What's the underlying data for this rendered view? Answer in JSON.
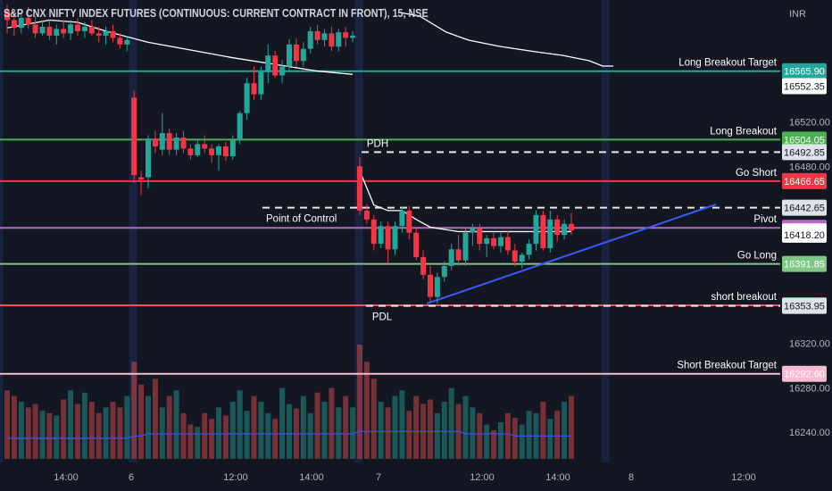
{
  "chart_data": {
    "type": "candlestick",
    "title": "S&P CNX NIFTY INDEX FUTURES (CONTINUOUS: CURRENT CONTRACT IN FRONT), 15, NSE",
    "currency": "INR",
    "ylim": [
      16215,
      16610
    ],
    "y_ticks": [
      "16520.00",
      "16480.00",
      "16320.00",
      "16280.00",
      "16240.00"
    ],
    "x_ticks": [
      "14:00",
      "6",
      "12:00",
      "14:00",
      "7",
      "12:00",
      "14:00",
      "8",
      "12:00"
    ],
    "grid": false,
    "levels": [
      {
        "name": "Long Breakout Target",
        "value": 16565.9,
        "price_label": "16565.90",
        "color": "#26a69a"
      },
      {
        "name": "Long Breakout",
        "value": 16504.05,
        "price_label": "16504.05",
        "color": "#4caf50"
      },
      {
        "name": "Go Short",
        "value": 16466.65,
        "price_label": "16466.65",
        "color": "#f23645"
      },
      {
        "name": "Pivot",
        "value": 16424.4,
        "price_label": "16424.40",
        "color": "#ba68c8"
      },
      {
        "name": "Go Long",
        "value": 16391.85,
        "price_label": "16391.85",
        "color": "#81c784"
      },
      {
        "name": "short breakout",
        "value": 16354.45,
        "price_label": "16354.45",
        "color": "#f7525f"
      },
      {
        "name": "Short  Breakout Target",
        "value": 16292.6,
        "price_label": "16292.60",
        "color": "#f8bbd0"
      }
    ],
    "dashed_levels": [
      {
        "name": "PDH",
        "value": 16492.85,
        "price_label": "16492.85"
      },
      {
        "name": "Point of Control",
        "value": 16442.65,
        "price_label": "16442.65"
      },
      {
        "name": "PDL",
        "value": 16353.95,
        "price_label": "16353.95"
      }
    ],
    "other_price_labels": [
      {
        "value": 16552.35,
        "price_label": "16552.35"
      },
      {
        "value": 16421.2,
        "price_label": "16421.20"
      },
      {
        "value": 16418.2,
        "price_label": "16418.20"
      }
    ],
    "candles": [
      {
        "o": 16620,
        "h": 16626,
        "l": 16600,
        "c": 16612
      },
      {
        "o": 16612,
        "h": 16620,
        "l": 16598,
        "c": 16605
      },
      {
        "o": 16605,
        "h": 16618,
        "l": 16600,
        "c": 16614
      },
      {
        "o": 16614,
        "h": 16624,
        "l": 16604,
        "c": 16608
      },
      {
        "o": 16608,
        "h": 16616,
        "l": 16596,
        "c": 16600
      },
      {
        "o": 16600,
        "h": 16612,
        "l": 16598,
        "c": 16606
      },
      {
        "o": 16606,
        "h": 16612,
        "l": 16594,
        "c": 16598
      },
      {
        "o": 16598,
        "h": 16608,
        "l": 16590,
        "c": 16604
      },
      {
        "o": 16604,
        "h": 16612,
        "l": 16596,
        "c": 16600
      },
      {
        "o": 16600,
        "h": 16612,
        "l": 16594,
        "c": 16608
      },
      {
        "o": 16608,
        "h": 16614,
        "l": 16598,
        "c": 16602
      },
      {
        "o": 16602,
        "h": 16610,
        "l": 16596,
        "c": 16606
      },
      {
        "o": 16606,
        "h": 16612,
        "l": 16598,
        "c": 16600
      },
      {
        "o": 16600,
        "h": 16606,
        "l": 16592,
        "c": 16598
      },
      {
        "o": 16598,
        "h": 16606,
        "l": 16590,
        "c": 16602
      },
      {
        "o": 16602,
        "h": 16608,
        "l": 16592,
        "c": 16596
      },
      {
        "o": 16596,
        "h": 16600,
        "l": 16586,
        "c": 16590
      },
      {
        "o": 16590,
        "h": 16598,
        "l": 16584,
        "c": 16594
      },
      {
        "o": 16542,
        "h": 16548,
        "l": 16465,
        "c": 16472
      },
      {
        "o": 16470,
        "h": 16476,
        "l": 16454,
        "c": 16468
      },
      {
        "o": 16470,
        "h": 16508,
        "l": 16460,
        "c": 16505
      },
      {
        "o": 16505,
        "h": 16512,
        "l": 16492,
        "c": 16498
      },
      {
        "o": 16495,
        "h": 16528,
        "l": 16490,
        "c": 16510
      },
      {
        "o": 16510,
        "h": 16514,
        "l": 16490,
        "c": 16495
      },
      {
        "o": 16495,
        "h": 16510,
        "l": 16490,
        "c": 16506
      },
      {
        "o": 16506,
        "h": 16512,
        "l": 16492,
        "c": 16496
      },
      {
        "o": 16496,
        "h": 16500,
        "l": 16486,
        "c": 16490
      },
      {
        "o": 16490,
        "h": 16505,
        "l": 16488,
        "c": 16500
      },
      {
        "o": 16500,
        "h": 16508,
        "l": 16492,
        "c": 16496
      },
      {
        "o": 16496,
        "h": 16500,
        "l": 16483,
        "c": 16490
      },
      {
        "o": 16490,
        "h": 16500,
        "l": 16476,
        "c": 16498
      },
      {
        "o": 16498,
        "h": 16502,
        "l": 16485,
        "c": 16489
      },
      {
        "o": 16489,
        "h": 16508,
        "l": 16486,
        "c": 16504
      },
      {
        "o": 16504,
        "h": 16530,
        "l": 16500,
        "c": 16528
      },
      {
        "o": 16528,
        "h": 16560,
        "l": 16522,
        "c": 16555
      },
      {
        "o": 16555,
        "h": 16570,
        "l": 16540,
        "c": 16545
      },
      {
        "o": 16545,
        "h": 16570,
        "l": 16540,
        "c": 16565
      },
      {
        "o": 16565,
        "h": 16590,
        "l": 16555,
        "c": 16580
      },
      {
        "o": 16580,
        "h": 16584,
        "l": 16560,
        "c": 16562
      },
      {
        "o": 16562,
        "h": 16576,
        "l": 16555,
        "c": 16570
      },
      {
        "o": 16570,
        "h": 16595,
        "l": 16565,
        "c": 16590
      },
      {
        "o": 16590,
        "h": 16596,
        "l": 16570,
        "c": 16575
      },
      {
        "o": 16575,
        "h": 16592,
        "l": 16570,
        "c": 16586
      },
      {
        "o": 16586,
        "h": 16606,
        "l": 16582,
        "c": 16602
      },
      {
        "o": 16602,
        "h": 16608,
        "l": 16590,
        "c": 16594
      },
      {
        "o": 16594,
        "h": 16604,
        "l": 16588,
        "c": 16600
      },
      {
        "o": 16600,
        "h": 16606,
        "l": 16584,
        "c": 16588
      },
      {
        "o": 16588,
        "h": 16604,
        "l": 16584,
        "c": 16601
      },
      {
        "o": 16601,
        "h": 16606,
        "l": 16588,
        "c": 16596
      },
      {
        "o": 16596,
        "h": 16602,
        "l": 16592,
        "c": 16598
      },
      {
        "o": 16480,
        "h": 16488,
        "l": 16436,
        "c": 16440
      },
      {
        "o": 16440,
        "h": 16446,
        "l": 16428,
        "c": 16432
      },
      {
        "o": 16432,
        "h": 16436,
        "l": 16404,
        "c": 16410
      },
      {
        "o": 16410,
        "h": 16430,
        "l": 16406,
        "c": 16426
      },
      {
        "o": 16426,
        "h": 16430,
        "l": 16392,
        "c": 16405
      },
      {
        "o": 16405,
        "h": 16430,
        "l": 16400,
        "c": 16426
      },
      {
        "o": 16426,
        "h": 16444,
        "l": 16420,
        "c": 16440
      },
      {
        "o": 16440,
        "h": 16444,
        "l": 16414,
        "c": 16420
      },
      {
        "o": 16420,
        "h": 16425,
        "l": 16395,
        "c": 16398
      },
      {
        "o": 16398,
        "h": 16404,
        "l": 16378,
        "c": 16382
      },
      {
        "o": 16382,
        "h": 16390,
        "l": 16358,
        "c": 16362
      },
      {
        "o": 16362,
        "h": 16384,
        "l": 16356,
        "c": 16380
      },
      {
        "o": 16380,
        "h": 16394,
        "l": 16376,
        "c": 16390
      },
      {
        "o": 16390,
        "h": 16410,
        "l": 16386,
        "c": 16405
      },
      {
        "o": 16405,
        "h": 16418,
        "l": 16390,
        "c": 16395
      },
      {
        "o": 16395,
        "h": 16425,
        "l": 16390,
        "c": 16420
      },
      {
        "o": 16420,
        "h": 16428,
        "l": 16408,
        "c": 16424
      },
      {
        "o": 16424,
        "h": 16428,
        "l": 16404,
        "c": 16410
      },
      {
        "o": 16410,
        "h": 16418,
        "l": 16398,
        "c": 16415
      },
      {
        "o": 16415,
        "h": 16420,
        "l": 16405,
        "c": 16408
      },
      {
        "o": 16408,
        "h": 16420,
        "l": 16402,
        "c": 16416
      },
      {
        "o": 16416,
        "h": 16422,
        "l": 16400,
        "c": 16404
      },
      {
        "o": 16404,
        "h": 16410,
        "l": 16390,
        "c": 16394
      },
      {
        "o": 16394,
        "h": 16402,
        "l": 16388,
        "c": 16400
      },
      {
        "o": 16400,
        "h": 16414,
        "l": 16396,
        "c": 16410
      },
      {
        "o": 16410,
        "h": 16440,
        "l": 16404,
        "c": 16436
      },
      {
        "o": 16436,
        "h": 16440,
        "l": 16404,
        "c": 16406
      },
      {
        "o": 16406,
        "h": 16440,
        "l": 16402,
        "c": 16432
      },
      {
        "o": 16432,
        "h": 16436,
        "l": 16412,
        "c": 16418
      },
      {
        "o": 16418,
        "h": 16432,
        "l": 16414,
        "c": 16428
      },
      {
        "o": 16428,
        "h": 16438,
        "l": 16418,
        "c": 16422
      }
    ],
    "volume": [
      60,
      55,
      50,
      45,
      48,
      42,
      40,
      38,
      52,
      60,
      48,
      58,
      50,
      40,
      45,
      50,
      45,
      55,
      85,
      65,
      55,
      70,
      45,
      55,
      60,
      40,
      30,
      28,
      40,
      35,
      45,
      38,
      50,
      60,
      42,
      55,
      50,
      40,
      35,
      62,
      48,
      44,
      55,
      40,
      58,
      50,
      62,
      45,
      55,
      45,
      100,
      85,
      70,
      50,
      45,
      55,
      60,
      42,
      55,
      48,
      52,
      40,
      50,
      62,
      48,
      55,
      45,
      40,
      30,
      25,
      32,
      40,
      36,
      30,
      42,
      40,
      50,
      35,
      42,
      50,
      55
    ],
    "volume_ma": [
      18,
      18,
      18,
      18,
      18,
      18,
      18,
      18,
      18,
      18,
      18,
      18,
      18,
      18,
      18,
      18,
      18,
      18,
      20,
      20,
      22,
      22,
      22,
      22,
      22,
      22,
      22,
      22,
      22,
      22,
      22,
      22,
      22,
      22,
      22,
      22,
      22,
      22,
      22,
      22,
      22,
      22,
      22,
      22,
      22,
      22,
      22,
      22,
      22,
      22,
      24,
      24,
      24,
      24,
      24,
      24,
      24,
      24,
      24,
      24,
      24,
      24,
      24,
      24,
      24,
      22,
      22,
      22,
      22,
      22,
      22,
      22,
      20,
      20,
      20,
      20,
      20,
      20,
      20,
      20,
      20
    ],
    "vwap": [
      {
        "bar": 0,
        "y": 16620
      },
      {
        "bar": 8,
        "y": 16605
      },
      {
        "bar": 18,
        "y": 16585
      },
      {
        "bar": 24,
        "y": 16575
      },
      {
        "bar": 30,
        "y": 16568
      },
      {
        "bar": 38,
        "y": 16562
      },
      {
        "bar": 44,
        "y": 16560
      },
      {
        "bar": 48,
        "y": 16558
      },
      {
        "bar": 50,
        "y": 16553
      }
    ],
    "session_vwap": [
      {
        "bar": 0,
        "y": 16605
      },
      {
        "bar": 6,
        "y": 16612
      },
      {
        "bar": 10,
        "y": 16610
      },
      {
        "bar": 14,
        "y": 16602
      },
      {
        "bar": 20,
        "y": 16592
      },
      {
        "bar": 26,
        "y": 16585
      },
      {
        "bar": 32,
        "y": 16578
      },
      {
        "bar": 38,
        "y": 16572
      },
      {
        "bar": 44,
        "y": 16566
      },
      {
        "bar": 49,
        "y": 16563
      }
    ],
    "day2_vwap": [
      {
        "bar": 50,
        "y": 16476
      },
      {
        "bar": 52,
        "y": 16445
      },
      {
        "bar": 54,
        "y": 16440
      },
      {
        "bar": 56,
        "y": 16440
      },
      {
        "bar": 58,
        "y": 16432
      },
      {
        "bar": 60,
        "y": 16425
      },
      {
        "bar": 64,
        "y": 16421
      },
      {
        "bar": 72,
        "y": 16421
      },
      {
        "bar": 80,
        "y": 16421
      }
    ],
    "trendline": {
      "from": {
        "bar": 59.5,
        "y": 16356
      },
      "to": {
        "bar": 95,
        "y": 16440
      }
    }
  }
}
